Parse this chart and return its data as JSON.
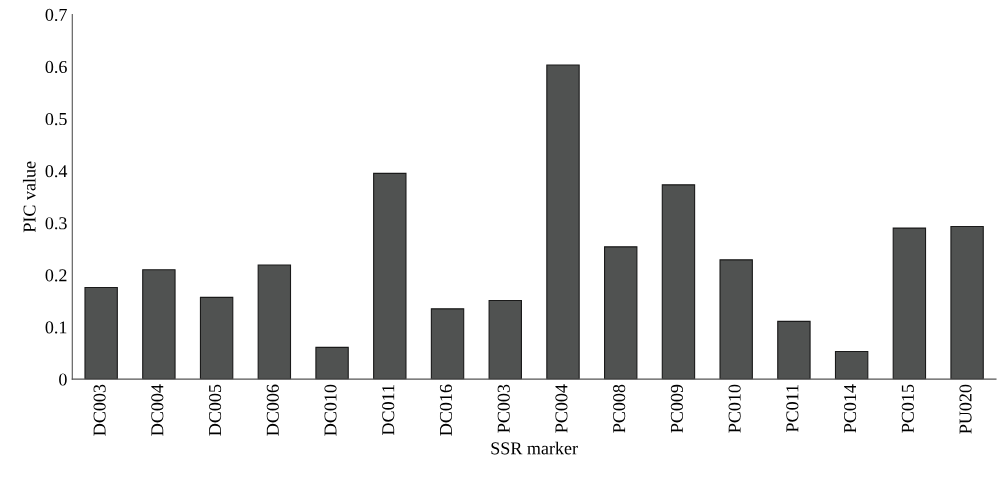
{
  "chart_data": {
    "type": "bar",
    "xlabel": "SSR marker",
    "ylabel": "PIC value",
    "categories": [
      "DC003",
      "DC004",
      "DC005",
      "DC006",
      "DC010",
      "DC011",
      "DC016",
      "PC003",
      "PC004",
      "PC008",
      "PC009",
      "PC010",
      "PC011",
      "PC014",
      "PC015",
      "PU020"
    ],
    "values": [
      0.176,
      0.21,
      0.157,
      0.219,
      0.061,
      0.395,
      0.135,
      0.151,
      0.603,
      0.254,
      0.373,
      0.229,
      0.111,
      0.053,
      0.29,
      0.293
    ],
    "color": "#505251",
    "ylim": [
      0,
      0.7
    ],
    "yticks": [
      {
        "value": 0,
        "label": "0"
      },
      0.1,
      0.2,
      0.3,
      0.4,
      0.5,
      0.6,
      0.7
    ],
    "grid": false
  }
}
